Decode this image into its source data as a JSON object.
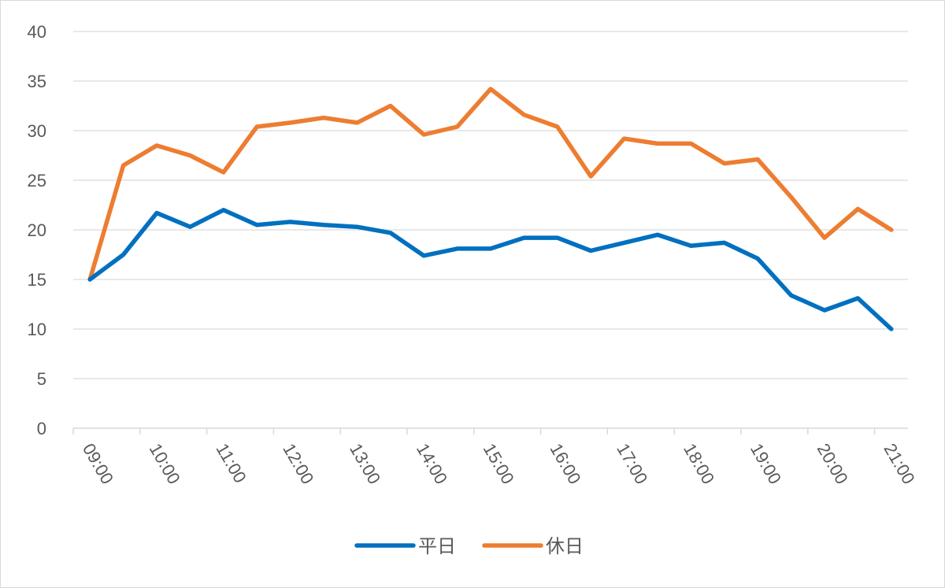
{
  "chart_data": {
    "type": "line",
    "title": "",
    "xlabel": "",
    "ylabel": "",
    "ylim": [
      0,
      40
    ],
    "yticks": [
      0,
      5,
      10,
      15,
      20,
      25,
      30,
      35,
      40
    ],
    "grid": true,
    "legend_position": "bottom",
    "x_tick_labels": [
      "09:00",
      "10:00",
      "11:00",
      "12:00",
      "13:00",
      "14:00",
      "15:00",
      "16:00",
      "17:00",
      "18:00",
      "19:00",
      "20:00",
      "21:00"
    ],
    "series": [
      {
        "name": "平日",
        "color": "#0070c0",
        "values": [
          15.0,
          17.5,
          21.7,
          20.3,
          22.0,
          20.5,
          20.8,
          20.5,
          20.3,
          19.7,
          17.4,
          18.1,
          18.1,
          19.2,
          19.2,
          17.9,
          18.7,
          19.5,
          18.4,
          18.7,
          17.1,
          13.4,
          11.9,
          13.1,
          10.0
        ]
      },
      {
        "name": "休日",
        "color": "#ed7d31",
        "values": [
          15.0,
          26.5,
          28.5,
          27.5,
          25.8,
          30.4,
          30.8,
          31.3,
          30.8,
          32.5,
          29.6,
          30.4,
          34.2,
          31.6,
          30.4,
          25.4,
          29.2,
          28.7,
          28.7,
          26.7,
          27.1,
          23.3,
          19.2,
          22.1,
          20.0
        ]
      }
    ]
  }
}
